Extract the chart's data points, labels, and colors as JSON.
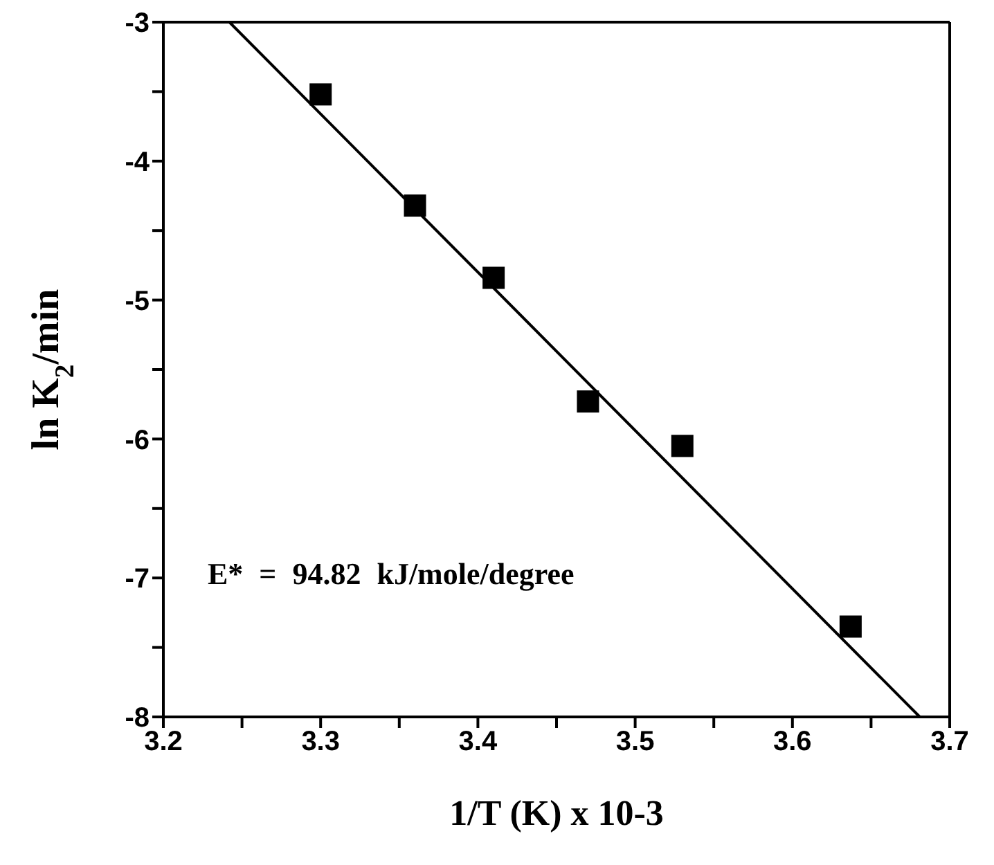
{
  "chart_data": {
    "type": "scatter",
    "xlabel": "1/T (K) x 10-3",
    "ylabel": "ln K$_{2}$/min",
    "annotations": [
      "E* = 94.82 kJ/mole/degree"
    ],
    "x": [
      3.3,
      3.36,
      3.41,
      3.47,
      3.53,
      3.637
    ],
    "series": [
      {
        "color": "#000000",
        "marker": "square",
        "values": [
          -3.52,
          -4.32,
          -4.84,
          -5.73,
          -6.05,
          -7.35
        ]
      },
      {
        "type": "line",
        "color": "#000000",
        "x": [
          3.242,
          3.681
        ],
        "values": [
          -3,
          -8
        ]
      }
    ],
    "grid": false,
    "legend": false,
    "xlim": [
      3.2,
      3.7
    ],
    "xticks": [
      3.2,
      {
        "value": 3.25,
        "label": null
      },
      3.3,
      {
        "value": 3.35,
        "label": null
      },
      3.4,
      {
        "value": 3.45,
        "label": null
      },
      3.5,
      {
        "value": 3.55,
        "label": null
      },
      3.6,
      {
        "value": 3.65,
        "label": null
      },
      3.7
    ],
    "ylim": [
      -8,
      -3
    ],
    "yticks": [
      -8,
      {
        "value": -7.5,
        "label": null
      },
      -7,
      {
        "value": -6.5,
        "label": null
      },
      -6,
      {
        "value": -5.5,
        "label": null
      },
      -5,
      {
        "value": -4.5,
        "label": null
      },
      -4,
      {
        "value": -3.5,
        "label": null
      },
      -3
    ]
  }
}
